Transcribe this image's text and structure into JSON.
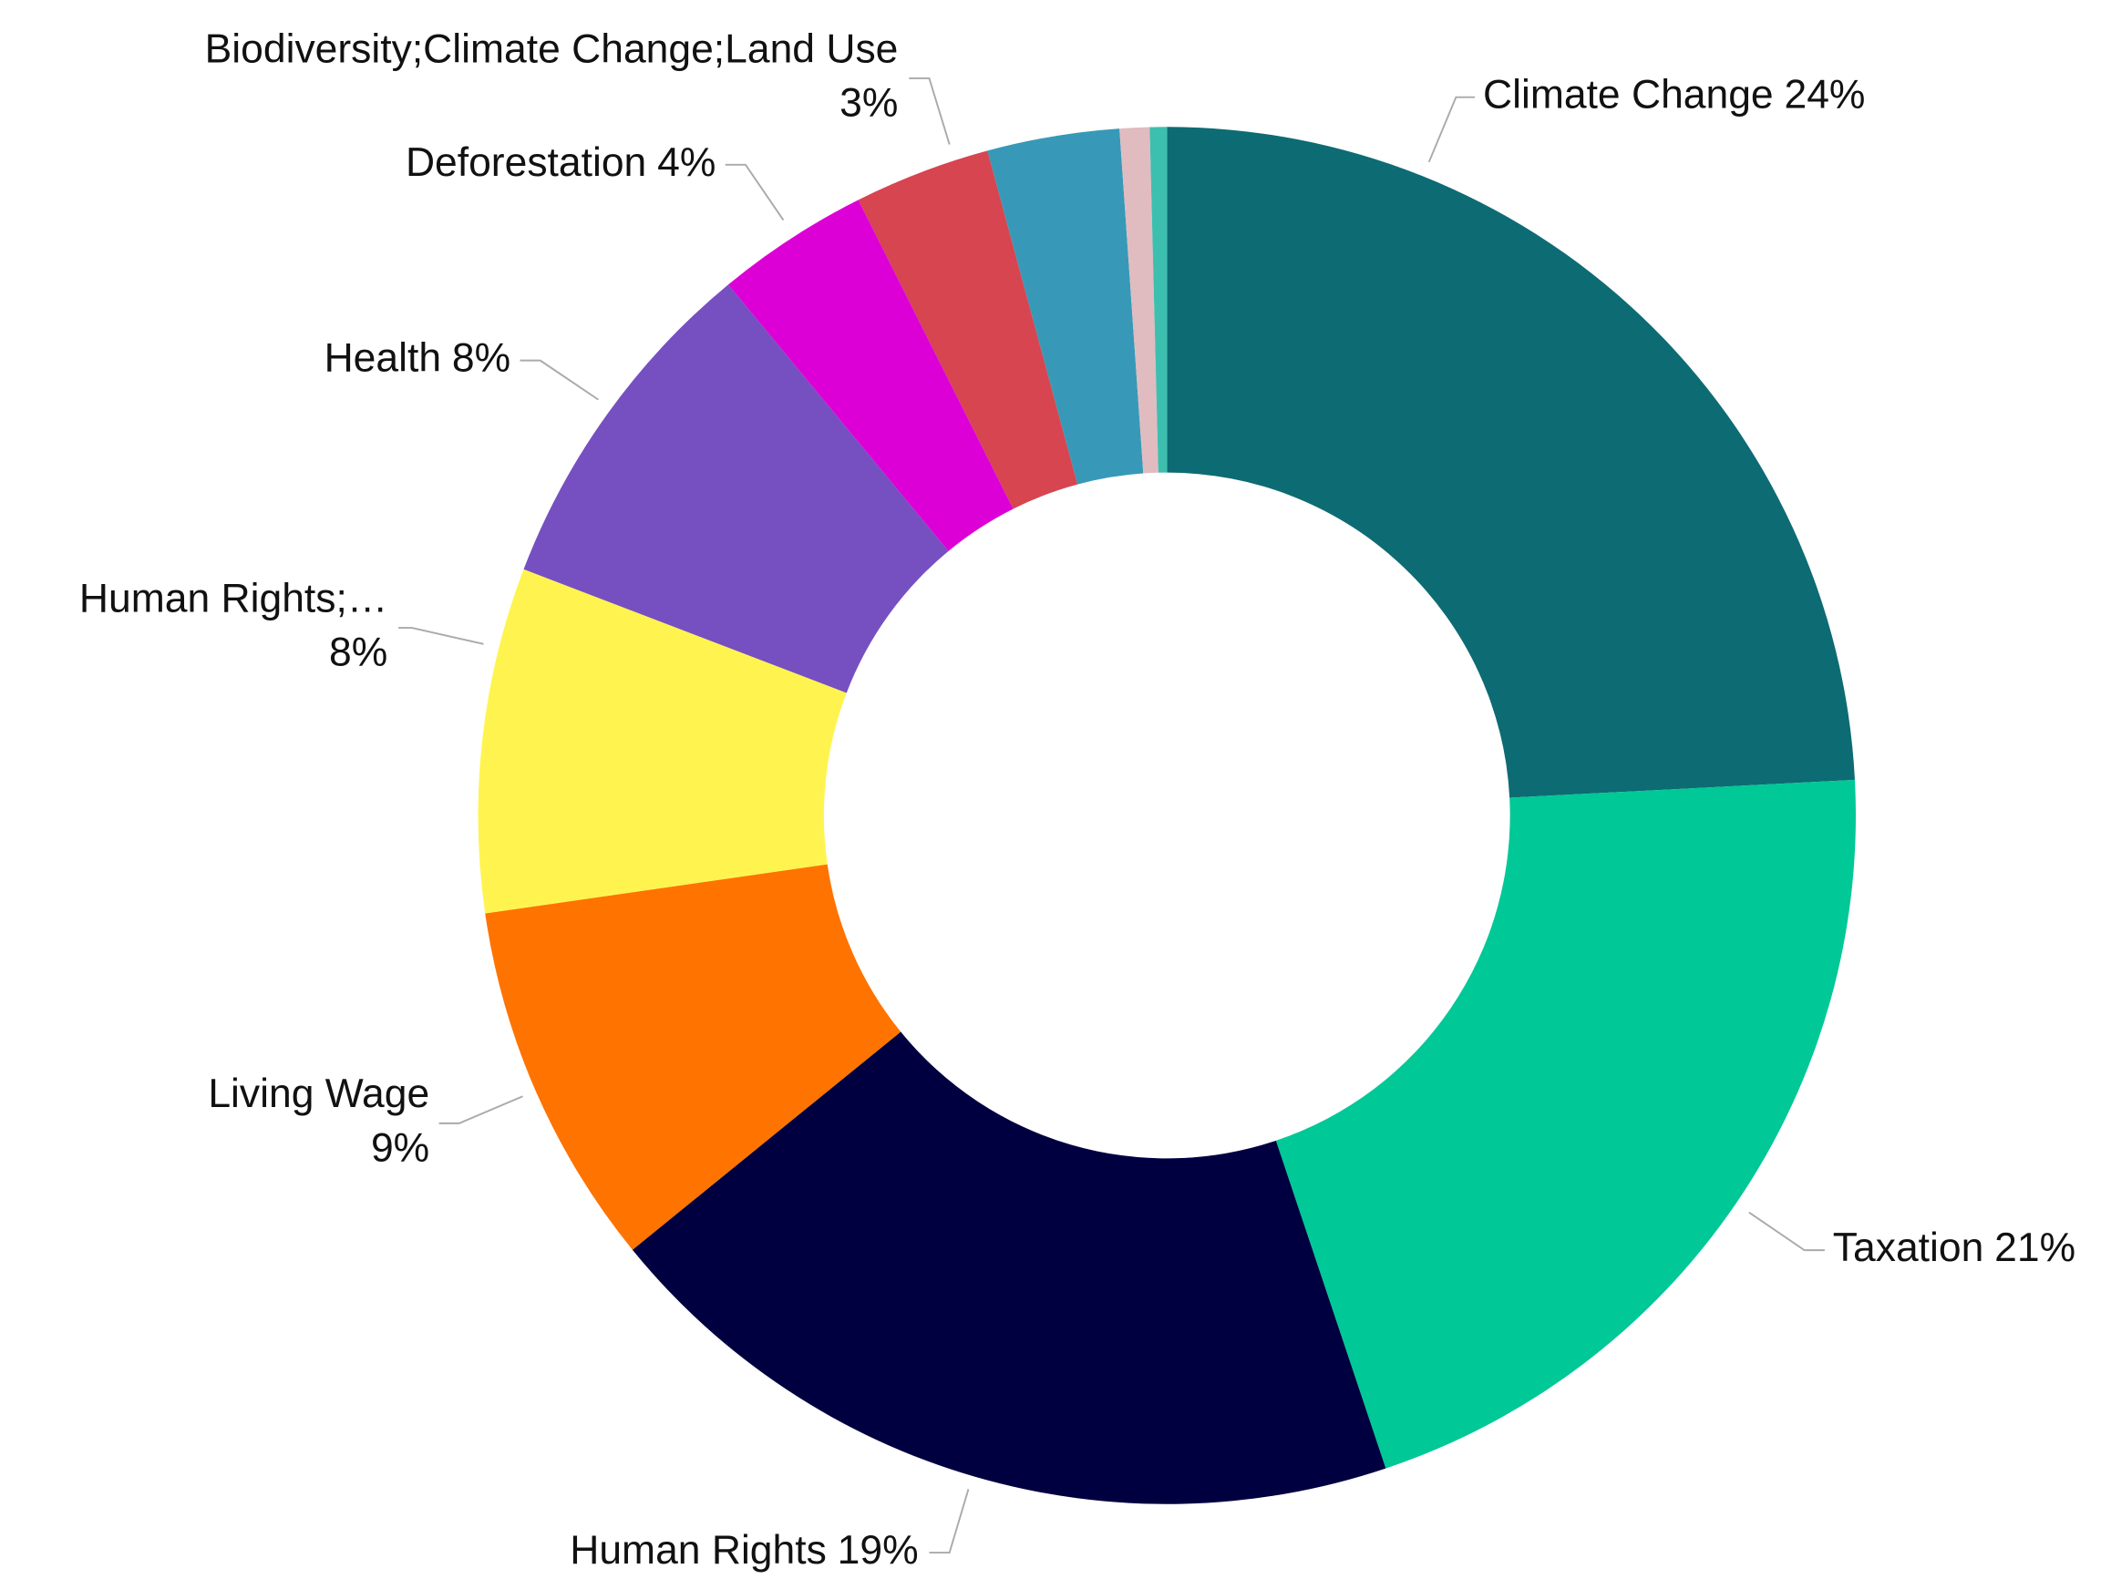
{
  "chart_data": {
    "type": "donut",
    "categories": [
      "Climate Change",
      "Taxation",
      "Human Rights",
      "Living Wage",
      "Human Rights;…",
      "Health",
      "Deforestation",
      "Biodiversity;Climate Change;Land Use",
      null,
      null,
      null
    ],
    "values": [
      24.2,
      20.7,
      19.3,
      8.6,
      8.1,
      8.2,
      3.6,
      3.2,
      3.1,
      0.7,
      0.4
    ],
    "value_labels": [
      "24%",
      "21%",
      "19%",
      "9%",
      "8%",
      "8%",
      "4%",
      "3%",
      null,
      null,
      null
    ],
    "colors": [
      "#0d6b73",
      "#00c896",
      "#000040",
      "#ff7300",
      "#fff44f",
      "#7650c0",
      "#dd00d6",
      "#d64550",
      "#3799b7",
      "#e0bcc0",
      "#3dbfb0"
    ]
  }
}
